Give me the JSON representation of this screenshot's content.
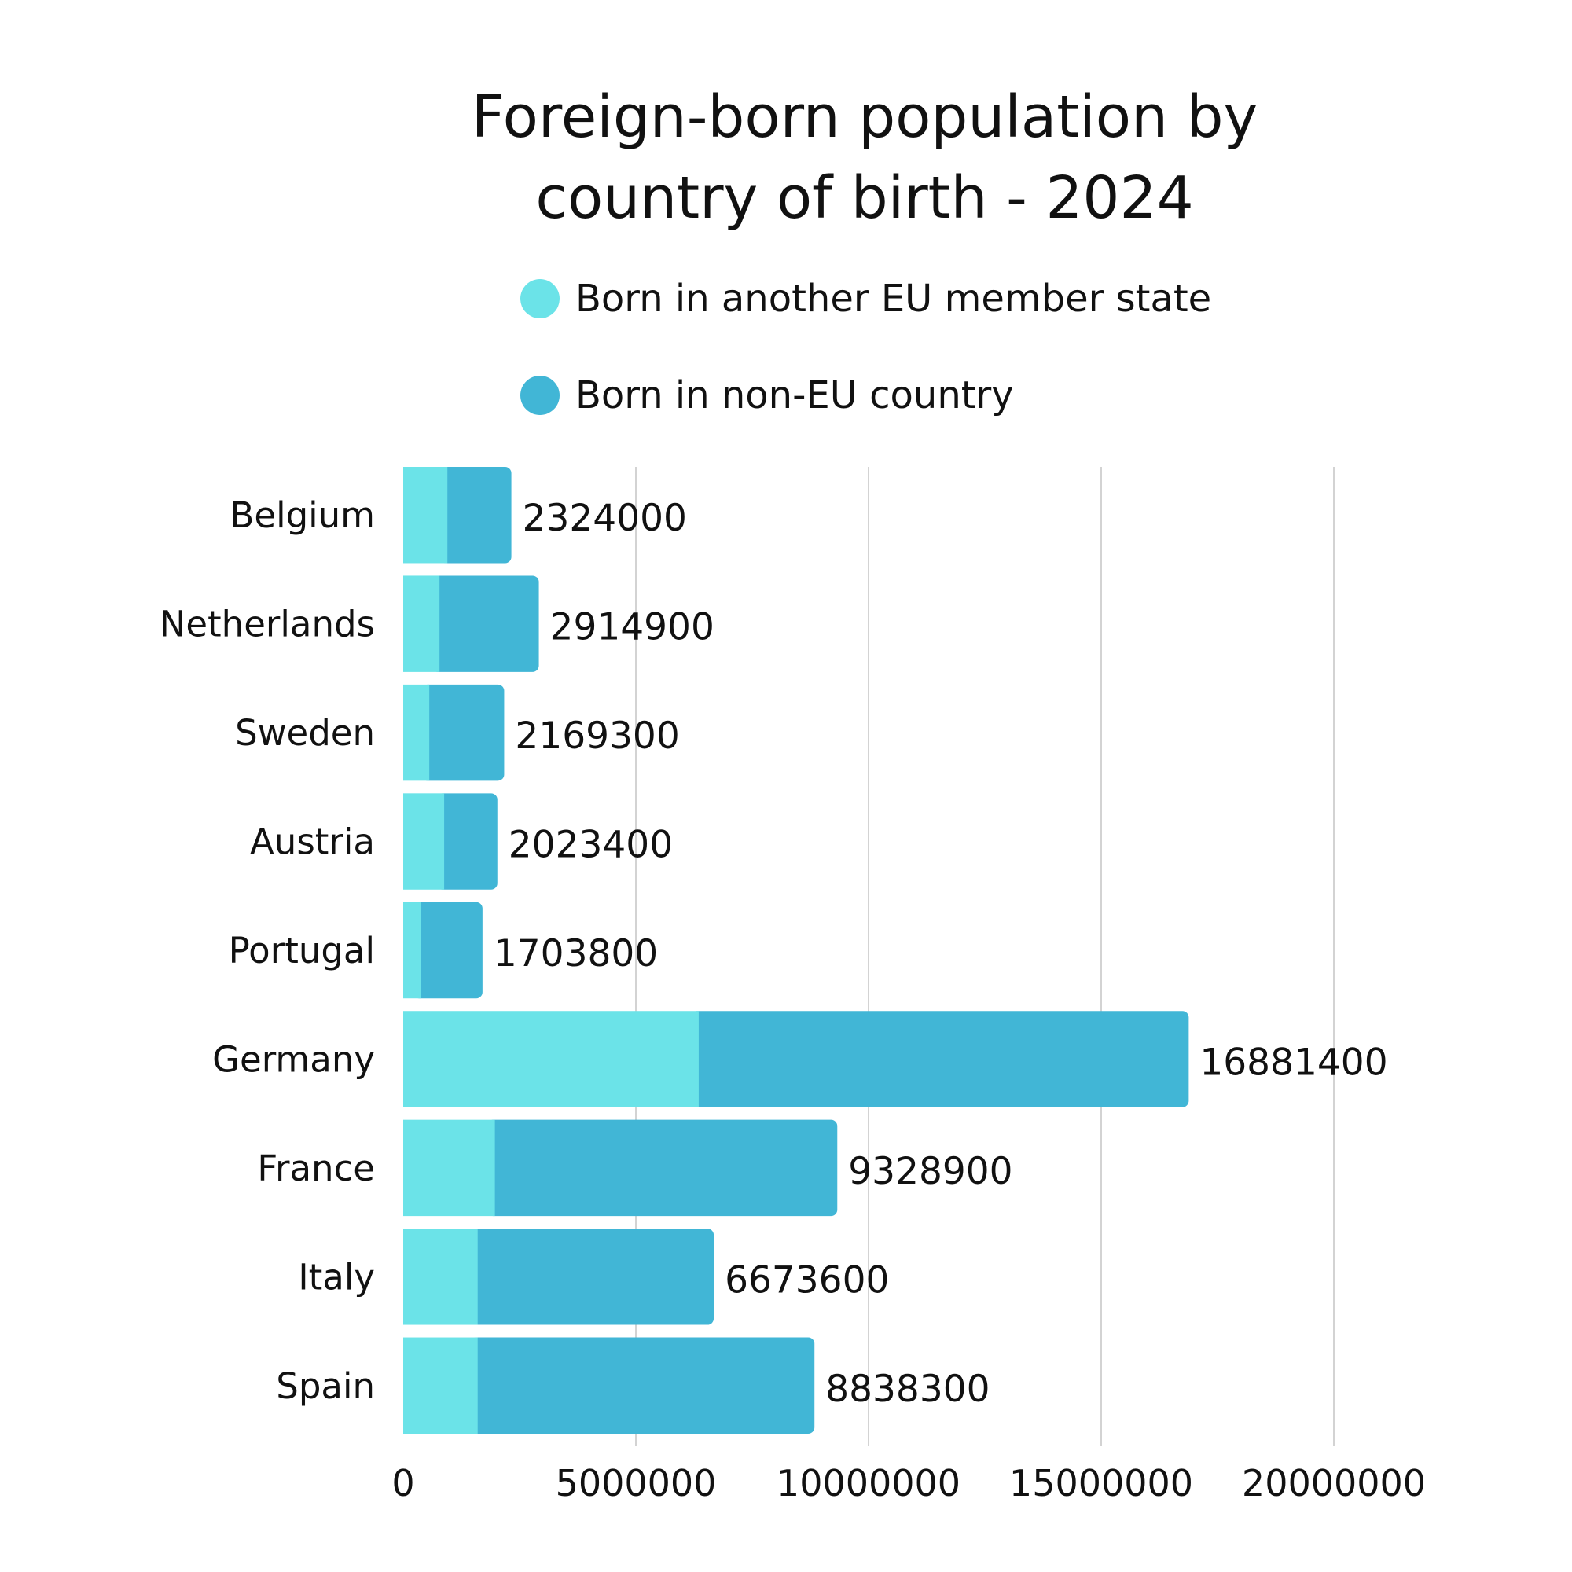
{
  "chart_data": {
    "type": "bar",
    "orientation": "horizontal",
    "stacked": true,
    "title": [
      "Foreign-born population by",
      "country of birth - 2024"
    ],
    "categories": [
      "Belgium",
      "Netherlands",
      "Sweden",
      "Austria",
      "Portugal",
      "Germany",
      "France",
      "Italy",
      "Spain"
    ],
    "series": [
      {
        "name": "Born in another EU member state",
        "color": "#6be3e8",
        "values": [
          950000,
          780000,
          560000,
          880000,
          380000,
          6350000,
          1970000,
          1600000,
          1600000
        ]
      },
      {
        "name": "Born in non-EU country",
        "color": "#41b6d6",
        "values": [
          1374000,
          2134900,
          1609300,
          1143400,
          1323800,
          10531400,
          7358900,
          5073600,
          7238300
        ]
      }
    ],
    "totals": [
      "2324000",
      "2914900",
      "2169300",
      "2023400",
      "1703800",
      "16881400",
      "9328900",
      "6673600",
      "8838300"
    ],
    "x_ticks": [
      "0",
      "5000000",
      "10000000",
      "15000000",
      "20000000"
    ],
    "xlim": [
      0,
      20000000
    ],
    "grid": {
      "vertical": true,
      "horizontal": false
    },
    "legend_position": "top"
  }
}
